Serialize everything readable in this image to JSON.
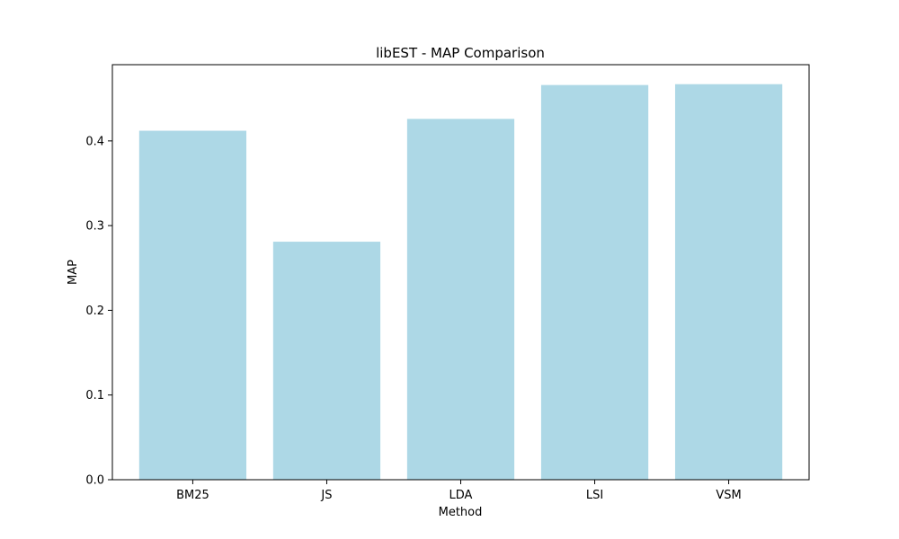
{
  "chart_data": {
    "type": "bar",
    "title": "libEST - MAP Comparison",
    "xlabel": "Method",
    "ylabel": "MAP",
    "categories": [
      "BM25",
      "JS",
      "LDA",
      "LSI",
      "VSM"
    ],
    "values": [
      0.412,
      0.281,
      0.426,
      0.466,
      0.467
    ],
    "ylim": [
      0,
      0.49
    ],
    "yticks": [
      0.0,
      0.1,
      0.2,
      0.3,
      0.4
    ],
    "ytick_labels": [
      "0.0",
      "0.1",
      "0.2",
      "0.3",
      "0.4"
    ],
    "bar_color": "#add8e6",
    "grid": false,
    "legend": false
  }
}
